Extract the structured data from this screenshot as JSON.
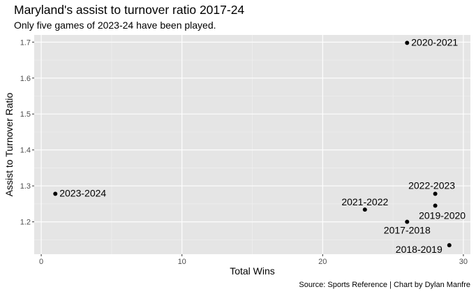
{
  "chart_data": {
    "type": "scatter",
    "title": "Maryland's assist to turnover ratio 2017-24",
    "subtitle": "Only five games of 2023-24 have been played.",
    "caption": "Source: Sports Reference | Chart by Dylan Manfre",
    "xlabel": "Total Wins",
    "ylabel": "Assist to Turnover Ratio",
    "xlim": [
      -0.5,
      30.5
    ],
    "ylim": [
      1.11,
      1.72
    ],
    "x_ticks": [
      0,
      10,
      20,
      30
    ],
    "y_ticks": [
      1.2,
      1.3,
      1.4,
      1.5,
      1.6,
      1.7
    ],
    "x_tick_labels": [
      "0",
      "10",
      "20",
      "30"
    ],
    "y_tick_labels": [
      "1.2",
      "1.3",
      "1.4",
      "1.5",
      "1.6",
      "1.7"
    ],
    "grid": true,
    "points": [
      {
        "label": "2017-2018",
        "x": 26,
        "y": 1.2
      },
      {
        "label": "2018-2019",
        "x": 29,
        "y": 1.135
      },
      {
        "label": "2019-2020",
        "x": 28,
        "y": 1.245
      },
      {
        "label": "2020-2021",
        "x": 26,
        "y": 1.698
      },
      {
        "label": "2021-2022",
        "x": 23,
        "y": 1.234
      },
      {
        "label": "2022-2023",
        "x": 28,
        "y": 1.278
      },
      {
        "label": "2023-2024",
        "x": 1,
        "y": 1.278
      }
    ]
  }
}
